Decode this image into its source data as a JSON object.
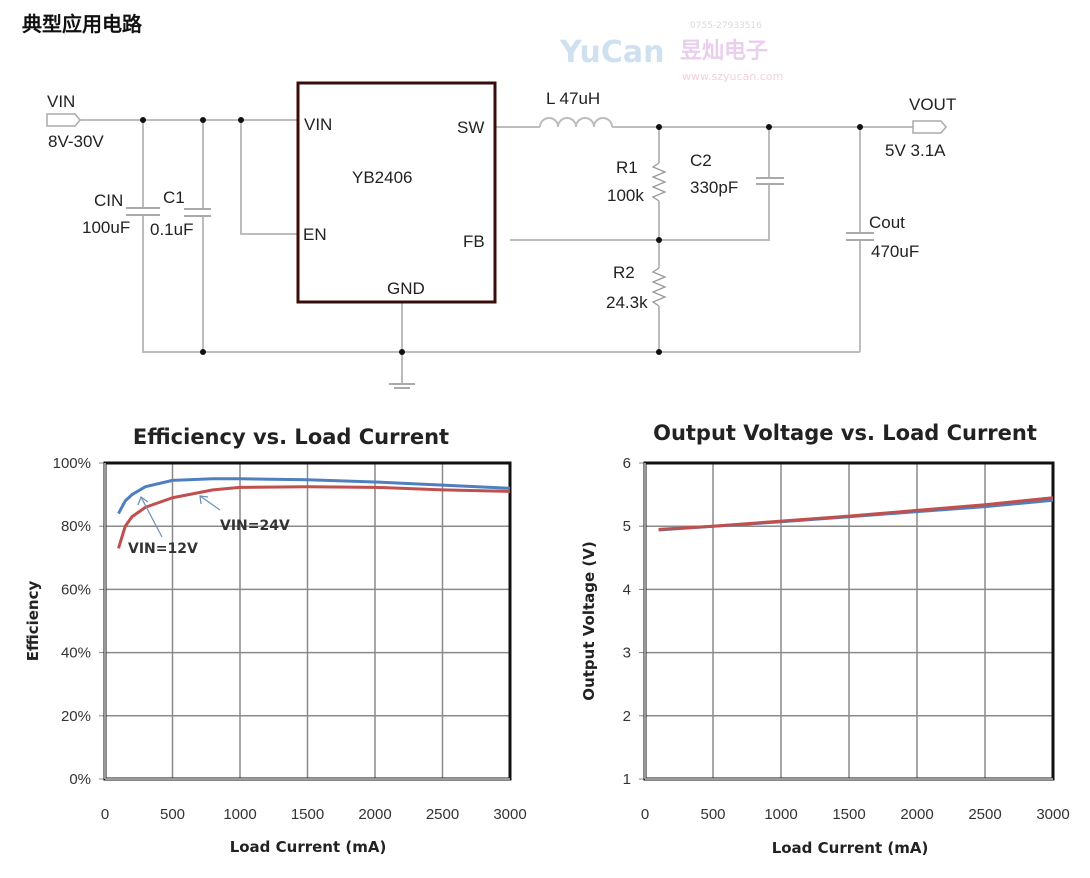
{
  "section_title": "典型应用电路",
  "circuit": {
    "vin_port": "VIN",
    "vin_range": "8V-30V",
    "cin_label": "CIN",
    "cin_value": "100uF",
    "c1_label": "C1",
    "c1_value": "0.1uF",
    "ic_name": "YB2406",
    "pin_vin": "VIN",
    "pin_en": "EN",
    "pin_sw": "SW",
    "pin_fb": "FB",
    "pin_gnd": "GND",
    "inductor": "L 47uH",
    "r1_label": "R1",
    "r1_value": "100k",
    "r2_label": "R2",
    "r2_value": "24.3k",
    "c2_label": "C2",
    "c2_value": "330pF",
    "cout_label": "Cout",
    "cout_value": "470uF",
    "vout_port": "VOUT",
    "vout_spec": "5V 3.1A"
  },
  "watermark": {
    "brand": "YuCan",
    "chinese": "昱灿电子",
    "phone": "0755-27933516",
    "url": "www.szyucan.com"
  },
  "chart_data": [
    {
      "type": "line",
      "title": "Efficiency vs. Load Current",
      "xlabel": "Load Current (mA)",
      "ylabel": "Efficiency",
      "xlim": [
        0,
        3000
      ],
      "ylim": [
        0,
        100
      ],
      "xticks": [
        "0",
        "500",
        "1000",
        "1500",
        "2000",
        "2500",
        "3000"
      ],
      "yticks": [
        "0%",
        "20%",
        "40%",
        "60%",
        "80%",
        "100%"
      ],
      "grid": true,
      "series": [
        {
          "name": "VIN=12V",
          "color": "#4f7fbf",
          "x": [
            100,
            150,
            200,
            300,
            500,
            800,
            1000,
            1500,
            2000,
            2500,
            3000
          ],
          "y": [
            84,
            88,
            90,
            92.5,
            94.5,
            95,
            95,
            94.7,
            94,
            93,
            92
          ]
        },
        {
          "name": "VIN=24V",
          "color": "#c0504d",
          "x": [
            100,
            150,
            200,
            300,
            500,
            800,
            1000,
            1500,
            2000,
            2500,
            3000
          ],
          "y": [
            73,
            80,
            83,
            86,
            89,
            91.5,
            92.3,
            92.5,
            92.3,
            91.5,
            91
          ]
        }
      ]
    },
    {
      "type": "line",
      "title": "Output Voltage vs. Load Current",
      "xlabel": "Load Current (mA)",
      "ylabel": "Output Voltage (V)",
      "xlim": [
        0,
        3000
      ],
      "ylim": [
        1,
        6
      ],
      "xticks": [
        "0",
        "500",
        "1000",
        "1500",
        "2000",
        "2500",
        "3000"
      ],
      "yticks": [
        "1",
        "2",
        "3",
        "4",
        "5",
        "6"
      ],
      "grid": true,
      "series": [
        {
          "color": "#4f7fbf",
          "x": [
            100,
            500,
            1000,
            1500,
            2000,
            2500,
            3000
          ],
          "y": [
            4.94,
            5.0,
            5.07,
            5.15,
            5.23,
            5.31,
            5.41
          ]
        },
        {
          "color": "#c0504d",
          "x": [
            100,
            500,
            1000,
            1500,
            2000,
            2500,
            3000
          ],
          "y": [
            4.95,
            5.0,
            5.08,
            5.16,
            5.25,
            5.34,
            5.45
          ]
        }
      ]
    }
  ]
}
